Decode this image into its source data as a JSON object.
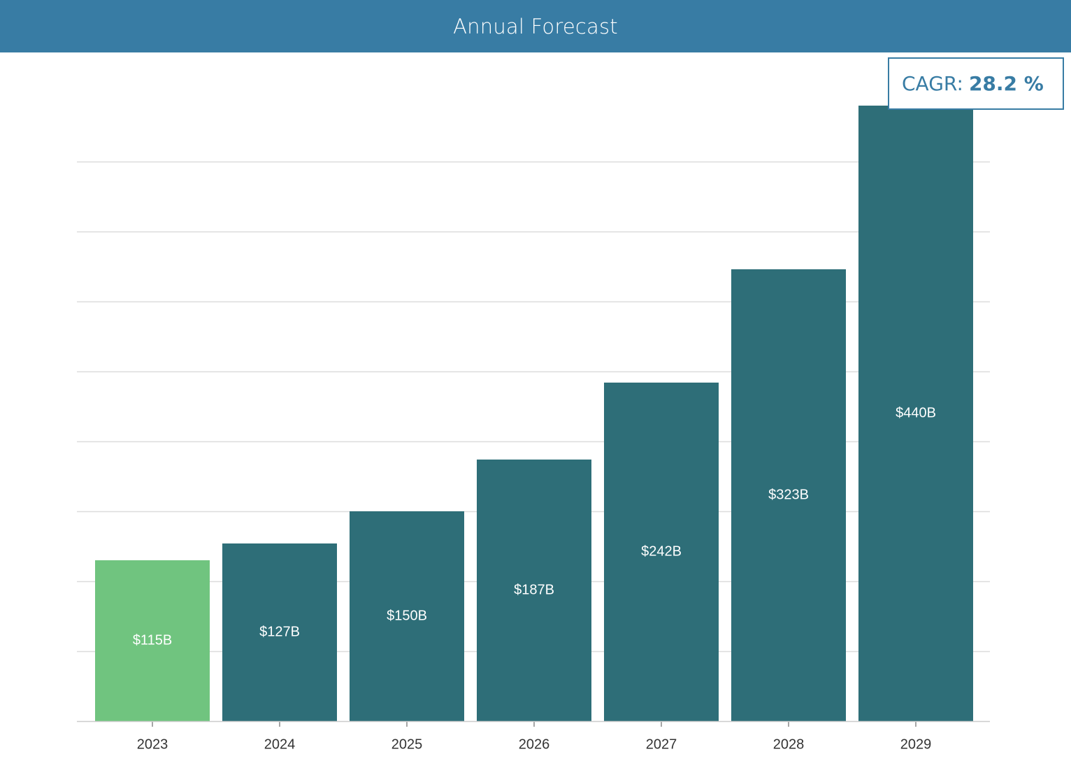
{
  "header": {
    "title": "Annual Forecast",
    "background_color": "#387ca4"
  },
  "badge": {
    "label": "CAGR:",
    "value": "28.2 %",
    "color": "#387ca4"
  },
  "colors": {
    "highlight_bar": "#70c47f",
    "bar": "#2e6e78",
    "gridline": "#dcdcdc",
    "axis_text": "#333333",
    "bar_label_text": "#ffffff"
  },
  "chart_data": {
    "type": "bar",
    "title": "",
    "xlabel": "",
    "ylabel": "",
    "categories": [
      "2023",
      "2024",
      "2025",
      "2026",
      "2027",
      "2028",
      "2029"
    ],
    "values": [
      115,
      127,
      150,
      187,
      242,
      323,
      440
    ],
    "value_labels": [
      "$115B",
      "$127B",
      "$150B",
      "$187B",
      "$242B",
      "$323B",
      "$440B"
    ],
    "unit": "$B",
    "highlight_index": 0,
    "ylim": [
      0,
      400
    ],
    "y_grid_step": 50,
    "y_tick_labels_shown": false,
    "grid": true,
    "legend": false
  }
}
